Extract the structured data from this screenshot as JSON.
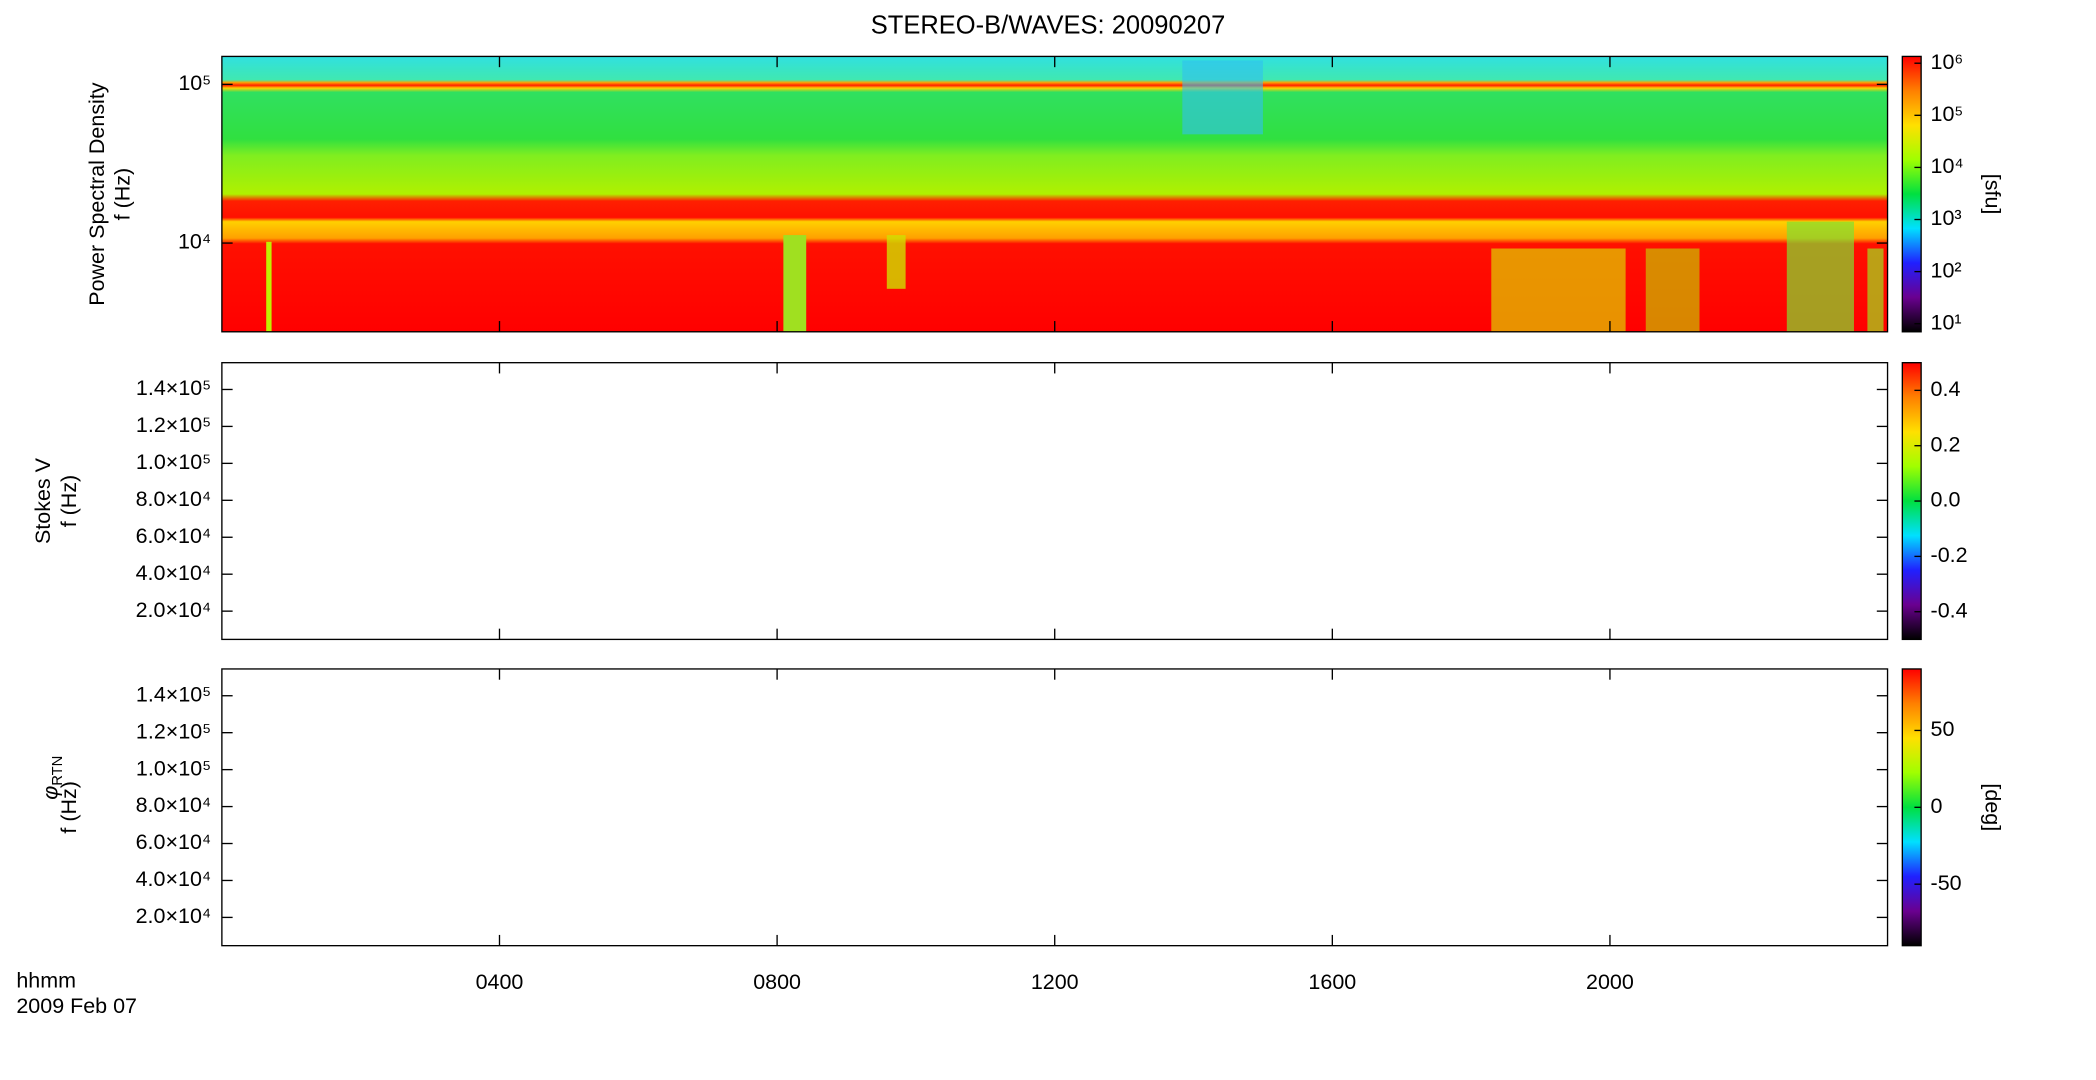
{
  "chart_data": [
    {
      "type": "heatmap",
      "title": "STEREO-B/WAVES: 20090207",
      "ylabel_top": "Power Spectral Density",
      "ylabel": "f (Hz)",
      "ylog": true,
      "ylim": [
        2760,
        150000
      ],
      "yticks": [
        {
          "value": 10000,
          "label": "10⁴"
        },
        {
          "value": 100000,
          "label": "10⁵"
        }
      ],
      "colorbar_label": "[sfu]",
      "clog": true,
      "clim": [
        7,
        1350000
      ],
      "cticks": [
        {
          "value": 10,
          "label": "10¹"
        },
        {
          "value": 100,
          "label": "10²"
        },
        {
          "value": 1000,
          "label": "10³"
        },
        {
          "value": 10000,
          "label": "10⁴"
        },
        {
          "value": 100000,
          "label": "10⁵"
        },
        {
          "value": 1000000,
          "label": "10⁶"
        }
      ],
      "colormap": [
        "#000000",
        "#6a0090",
        "#2020ff",
        "#00e0ff",
        "#00e040",
        "#a0ff00",
        "#ffe000",
        "#ff8000",
        "#ff0000"
      ]
    },
    {
      "type": "heatmap",
      "ylabel_top": "Stokes V",
      "ylabel": "f (Hz)",
      "ylog": false,
      "ylim": [
        4700,
        154500
      ],
      "yticks": [
        {
          "value": 20000,
          "label": "2.0×10⁴"
        },
        {
          "value": 40000,
          "label": "4.0×10⁴"
        },
        {
          "value": 60000,
          "label": "6.0×10⁴"
        },
        {
          "value": 80000,
          "label": "8.0×10⁴"
        },
        {
          "value": 100000,
          "label": "1.0×10⁵"
        },
        {
          "value": 120000,
          "label": "1.2×10⁵"
        },
        {
          "value": 140000,
          "label": "1.4×10⁵"
        }
      ],
      "clog": false,
      "clim": [
        -0.5,
        0.5
      ],
      "cticks": [
        -0.4,
        -0.2,
        {
          "value": 0,
          "label": "0.0"
        },
        0.2,
        0.4
      ],
      "colormap": [
        "#000000",
        "#6a0090",
        "#2020ff",
        "#00e0ff",
        "#00e040",
        "#a0ff00",
        "#ffe000",
        "#ff8000",
        "#ff0000"
      ]
    },
    {
      "type": "heatmap",
      "ylabel_symbol": "φ",
      "ylabel_subscript": "RTN",
      "ylabel": "f (Hz)",
      "ylog": false,
      "ylim": [
        4700,
        154500
      ],
      "yticks": [
        {
          "value": 20000,
          "label": "2.0×10⁴"
        },
        {
          "value": 40000,
          "label": "4.0×10⁴"
        },
        {
          "value": 60000,
          "label": "6.0×10⁴"
        },
        {
          "value": 80000,
          "label": "8.0×10⁴"
        },
        {
          "value": 100000,
          "label": "1.0×10⁵"
        },
        {
          "value": 120000,
          "label": "1.2×10⁵"
        },
        {
          "value": 140000,
          "label": "1.4×10⁵"
        }
      ],
      "colorbar_label": "[deg]",
      "clog": false,
      "clim": [
        -90,
        90
      ],
      "cticks": [
        -50,
        0,
        50
      ],
      "colormap": [
        "#000000",
        "#6a0090",
        "#2020ff",
        "#00e0ff",
        "#00e040",
        "#a0ff00",
        "#ffe000",
        "#ff8000",
        "#ff0000"
      ],
      "xlabel": "hhmm",
      "date": "2009 Feb 07",
      "xlim": [
        0,
        24
      ],
      "xticks": [
        {
          "value": 4,
          "label": "0400"
        },
        {
          "value": 8,
          "label": "0800"
        },
        {
          "value": 12,
          "label": "1200"
        },
        {
          "value": 16,
          "label": "1600"
        },
        {
          "value": 20,
          "label": "2000"
        }
      ]
    }
  ]
}
